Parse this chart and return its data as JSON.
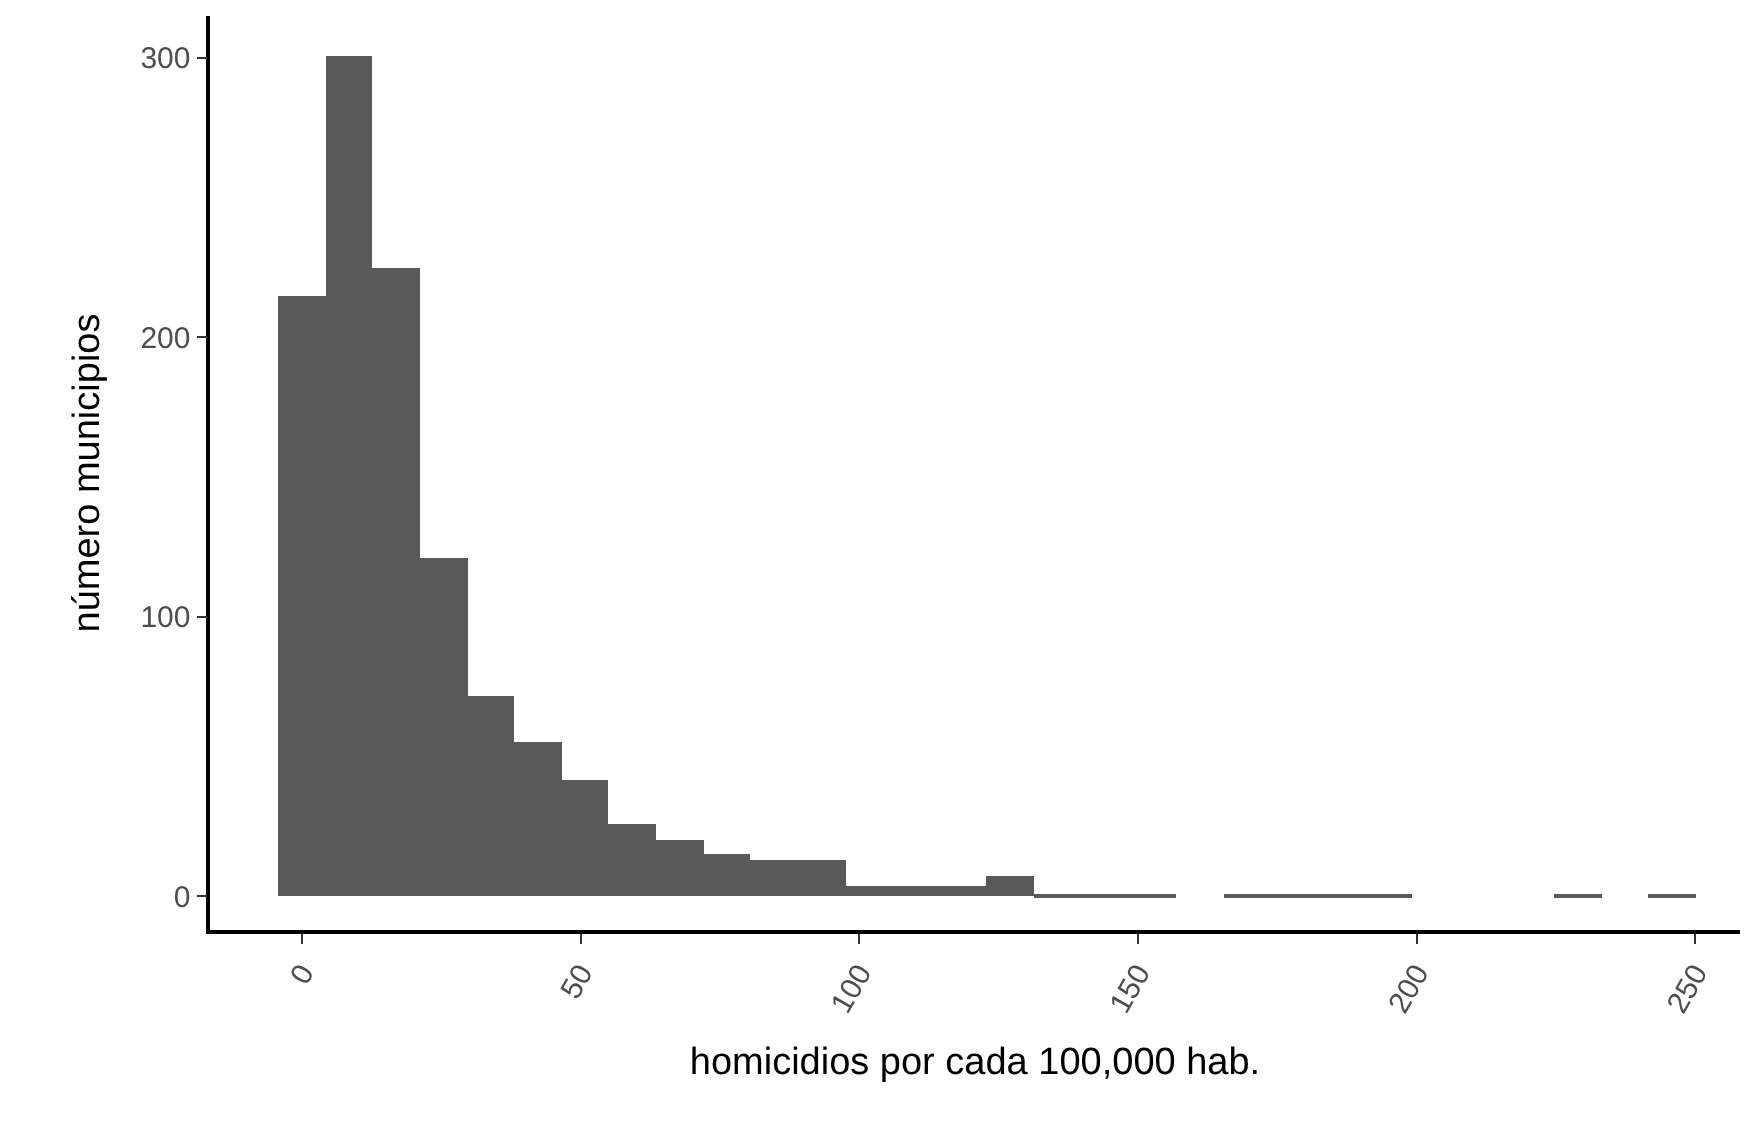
{
  "chart_data": {
    "type": "histogram",
    "xlabel": "homicidios por cada 100,000 hab.",
    "ylabel": "número municipios",
    "color": "#595959",
    "bins": [
      -4.3,
      4.18,
      12.66,
      21.14,
      29.62,
      38.1,
      46.58,
      55.06,
      63.54,
      72.02,
      80.5,
      88.98,
      97.46,
      105.94,
      114.42,
      122.9,
      131.38,
      139.86,
      148.34,
      156.82,
      165.3,
      173.78,
      182.26,
      190.74,
      199.22,
      207.7,
      216.18,
      224.66,
      233.14,
      241.62,
      250.1
    ],
    "values": [
      215,
      301,
      225,
      121,
      72,
      55,
      42,
      26,
      20,
      15,
      13,
      13,
      4,
      4,
      4,
      7,
      1,
      1,
      1,
      0,
      1,
      1,
      1,
      1,
      0,
      0,
      0,
      1,
      0,
      1
    ],
    "xlim": [
      -16.5,
      258
    ],
    "ylim": [
      -12,
      315
    ],
    "xticks": [
      0,
      50,
      100,
      150,
      200,
      250
    ],
    "yticks": [
      0,
      100,
      200,
      300
    ]
  }
}
